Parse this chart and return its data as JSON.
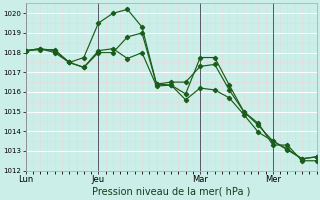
{
  "title": "Pression niveau de la mer( hPa )",
  "bg_color": "#cceee8",
  "grid_color": "#ffffff",
  "grid_minor_color": "#ddf5f0",
  "line_color": "#1a5c1a",
  "ylim": [
    1012,
    1020.5
  ],
  "yticks": [
    1012,
    1013,
    1014,
    1015,
    1016,
    1017,
    1018,
    1019,
    1020
  ],
  "vlines_x": [
    0.0,
    0.28,
    0.555,
    0.78
  ],
  "xtick_labels": [
    "Lun",
    "Jeu",
    "Mar",
    "Mer"
  ],
  "series_x": [
    [
      0,
      1,
      2,
      3,
      4,
      5,
      6,
      7,
      8,
      9,
      10,
      11,
      12,
      13,
      14,
      15,
      16,
      17,
      18,
      19,
      20
    ],
    [
      0,
      1,
      2,
      3,
      4,
      5,
      6,
      7,
      8,
      9,
      10,
      11,
      12,
      13,
      14,
      15,
      16,
      17,
      18,
      19,
      20
    ],
    [
      0,
      1,
      2,
      3,
      4,
      5,
      6,
      7,
      8,
      9,
      10,
      11,
      12,
      13,
      14,
      15,
      16,
      17,
      18,
      19,
      20
    ]
  ],
  "series_y": [
    [
      1018.1,
      1018.2,
      1018.1,
      1017.5,
      1017.75,
      1019.5,
      1020.0,
      1020.2,
      1019.3,
      1016.4,
      1016.35,
      1015.9,
      1017.75,
      1017.75,
      1016.35,
      1015.0,
      1014.4,
      1013.3,
      1013.3,
      1012.5,
      1012.5
    ],
    [
      1018.1,
      1018.2,
      1018.0,
      1017.5,
      1017.25,
      1018.0,
      1018.0,
      1018.8,
      1019.0,
      1016.4,
      1016.5,
      1016.5,
      1017.3,
      1017.4,
      1016.1,
      1015.0,
      1014.3,
      1013.5,
      1013.1,
      1012.6,
      1012.7
    ],
    [
      1018.1,
      1018.15,
      1018.15,
      1017.5,
      1017.25,
      1018.1,
      1018.2,
      1017.7,
      1018.0,
      1016.3,
      1016.35,
      1015.6,
      1016.2,
      1016.1,
      1015.7,
      1014.85,
      1013.95,
      1013.5,
      1013.05,
      1012.6,
      1012.7
    ]
  ],
  "xlim": [
    0,
    20
  ],
  "vlines_xi": [
    0,
    5,
    12,
    17
  ]
}
